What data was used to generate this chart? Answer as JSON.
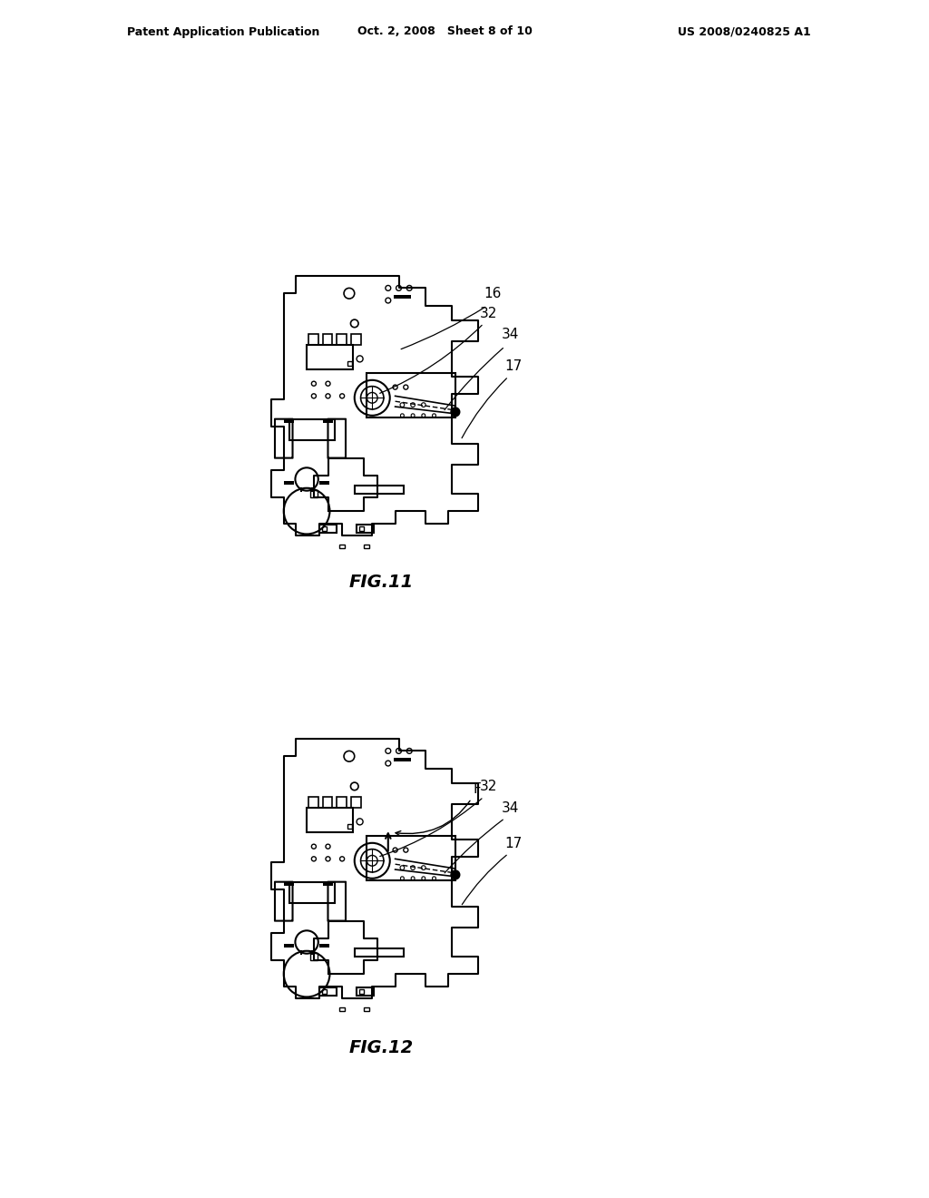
{
  "bg_color": "#ffffff",
  "line_color": "#000000",
  "header_text_left": "Patent Application Publication",
  "header_text_mid": "Oct. 2, 2008   Sheet 8 of 10",
  "header_text_right": "US 2008/0240825 A1",
  "fig11_label": "FIG.11",
  "fig12_label": "FIG.12"
}
